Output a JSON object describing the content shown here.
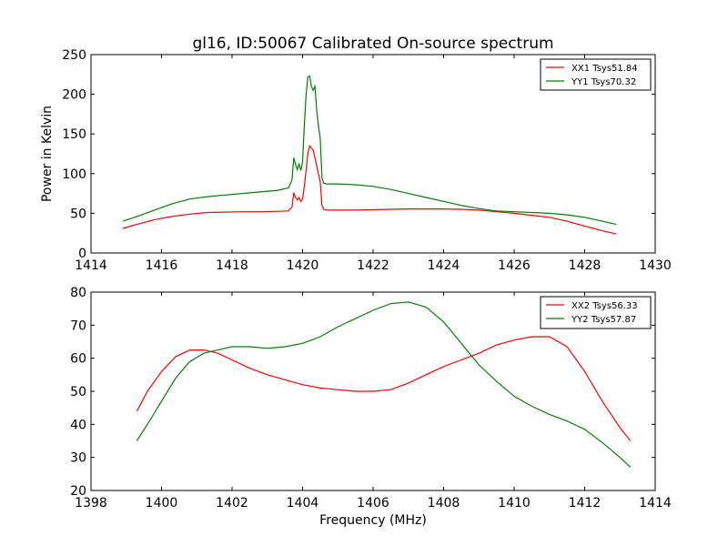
{
  "title": "gl16, ID:50067 Calibrated On-source spectrum",
  "chart_data": [
    {
      "type": "line",
      "ylabel": "Power in Kelvin",
      "xlabel": "",
      "xlim": [
        1414,
        1430
      ],
      "ylim": [
        0,
        250
      ],
      "xticks": [
        "1414",
        "1416",
        "1418",
        "1420",
        "1422",
        "1424",
        "1426",
        "1428",
        "1430"
      ],
      "yticks": [
        "0",
        "50",
        "100",
        "150",
        "200",
        "250"
      ],
      "legend_position": "top-right",
      "grid": false,
      "series": [
        {
          "name": "XX1 Tsys51.84",
          "color": "#ff0000",
          "x": [
            1414.9,
            1415.3,
            1415.8,
            1416.3,
            1416.8,
            1417.3,
            1417.8,
            1418.3,
            1418.8,
            1419.3,
            1419.6,
            1419.7,
            1419.75,
            1419.8,
            1419.85,
            1419.9,
            1419.95,
            1420.0,
            1420.05,
            1420.1,
            1420.15,
            1420.2,
            1420.25,
            1420.3,
            1420.35,
            1420.4,
            1420.45,
            1420.5,
            1420.55,
            1420.6,
            1420.7,
            1421.0,
            1421.5,
            1422.0,
            1422.5,
            1423.0,
            1423.5,
            1424.0,
            1424.5,
            1425.0,
            1425.5,
            1426.0,
            1426.5,
            1427.0,
            1427.5,
            1428.0,
            1428.5,
            1428.9
          ],
          "y": [
            31,
            36,
            42,
            46,
            49,
            51,
            51.5,
            52,
            52,
            52.5,
            53,
            58,
            76,
            70,
            67,
            70,
            65,
            68,
            84,
            104,
            126,
            135,
            132,
            130,
            120,
            110,
            100,
            90,
            60,
            55,
            54,
            54,
            54,
            54.5,
            55,
            55.5,
            55.5,
            55.5,
            55,
            54,
            52,
            50,
            47.5,
            45,
            40,
            34,
            28,
            24
          ]
        },
        {
          "name": "YY1 Tsys70.32",
          "color": "#008000",
          "x": [
            1414.9,
            1415.3,
            1415.8,
            1416.3,
            1416.8,
            1417.3,
            1417.8,
            1418.3,
            1418.8,
            1419.3,
            1419.6,
            1419.7,
            1419.75,
            1419.8,
            1419.85,
            1419.9,
            1419.95,
            1420.0,
            1420.05,
            1420.1,
            1420.15,
            1420.2,
            1420.25,
            1420.3,
            1420.35,
            1420.4,
            1420.45,
            1420.5,
            1420.55,
            1420.6,
            1420.7,
            1421.0,
            1421.5,
            1422.0,
            1422.5,
            1423.0,
            1423.5,
            1424.0,
            1424.5,
            1425.0,
            1425.5,
            1426.0,
            1426.5,
            1427.0,
            1427.5,
            1428.0,
            1428.5,
            1428.9
          ],
          "y": [
            40,
            46,
            54,
            62,
            68,
            71,
            73,
            75,
            77,
            79,
            82,
            92,
            120,
            112,
            105,
            112,
            104,
            115,
            160,
            200,
            222,
            223,
            210,
            205,
            210,
            180,
            160,
            145,
            95,
            88,
            87,
            87,
            86,
            84,
            80,
            75,
            70,
            65,
            60,
            56,
            53,
            52,
            51,
            50,
            48,
            45,
            40,
            36
          ]
        }
      ]
    },
    {
      "type": "line",
      "ylabel": "",
      "xlabel": "Frequency (MHz)",
      "xlim": [
        1398,
        1414
      ],
      "ylim": [
        20,
        80
      ],
      "xticks": [
        "1398",
        "1400",
        "1402",
        "1404",
        "1406",
        "1408",
        "1410",
        "1412",
        "1414"
      ],
      "yticks": [
        "20",
        "30",
        "40",
        "50",
        "60",
        "70",
        "80"
      ],
      "legend_position": "top-right",
      "grid": false,
      "series": [
        {
          "name": "XX2 Tsys56.33",
          "color": "#ff0000",
          "x": [
            1399.3,
            1399.6,
            1400.0,
            1400.4,
            1400.8,
            1401.2,
            1401.6,
            1402.0,
            1402.5,
            1403.0,
            1403.5,
            1404.0,
            1404.5,
            1405.0,
            1405.5,
            1406.0,
            1406.5,
            1407.0,
            1407.5,
            1408.0,
            1408.5,
            1409.0,
            1409.5,
            1410.0,
            1410.5,
            1411.0,
            1411.5,
            1412.0,
            1412.5,
            1413.0,
            1413.3
          ],
          "y": [
            44,
            50,
            56,
            60.5,
            62.5,
            62.5,
            61.5,
            59.5,
            57,
            55,
            53.5,
            52,
            51,
            50.5,
            50,
            50,
            50.5,
            52.5,
            55,
            57.5,
            59.5,
            61.5,
            64,
            65.5,
            66.5,
            66.5,
            63.5,
            56,
            47,
            39,
            35
          ]
        },
        {
          "name": "YY2 Tsys57.87",
          "color": "#008000",
          "x": [
            1399.3,
            1399.6,
            1400.0,
            1400.4,
            1400.8,
            1401.2,
            1401.6,
            1402.0,
            1402.5,
            1403.0,
            1403.5,
            1404.0,
            1404.5,
            1405.0,
            1405.5,
            1406.0,
            1406.5,
            1407.0,
            1407.5,
            1408.0,
            1408.5,
            1409.0,
            1409.5,
            1410.0,
            1410.5,
            1411.0,
            1411.5,
            1412.0,
            1412.5,
            1413.0,
            1413.3
          ],
          "y": [
            35,
            40,
            47,
            54,
            59,
            61.5,
            62.5,
            63.5,
            63.5,
            63,
            63.5,
            64.5,
            66.5,
            69.5,
            72,
            74.5,
            76.5,
            77,
            75.5,
            71,
            64.5,
            58,
            53,
            48.5,
            45.5,
            43,
            41,
            38.5,
            34.5,
            30,
            27
          ]
        }
      ]
    }
  ]
}
